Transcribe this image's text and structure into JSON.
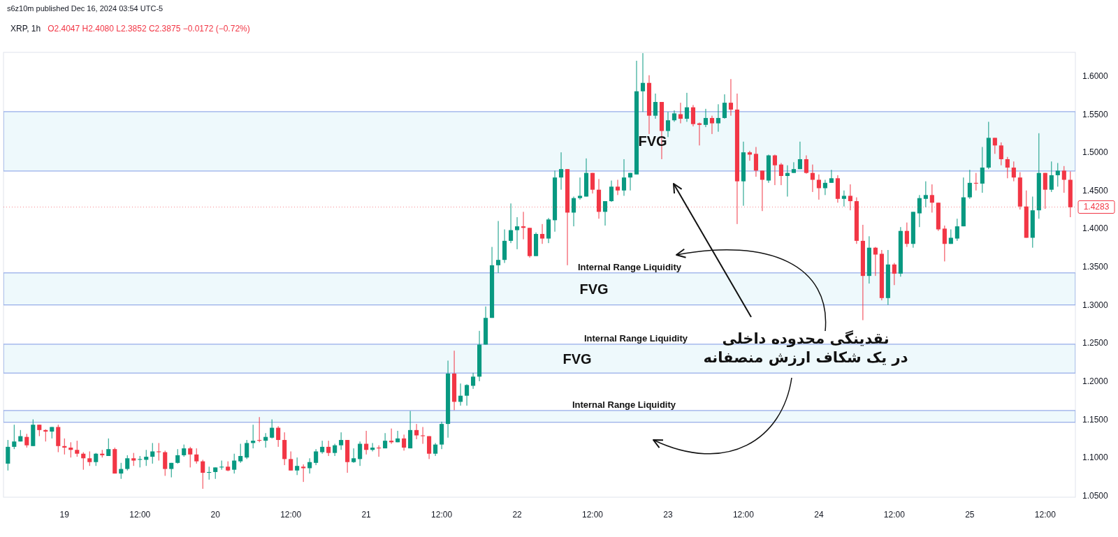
{
  "chart_data": {
    "type": "candlestick",
    "title": "XRP, 1h",
    "subtitle": "O2.4047 H2.4080 L2.3852 C2.3875 −0.0172 (−0.72%)",
    "annotations": [
      "s6z10m published Dec 16, 2024 03:54 UTC-5",
      "Internal Range Liquidity",
      "Internal Range Liquidity",
      "Internal Range Liquidity",
      "نقدینگی محدوده داخلی\nدر یک شکاف ارزش منصفانه"
    ],
    "categories": [
      null,
      null,
      null,
      null,
      null,
      null,
      null,
      null,
      null,
      "19",
      null,
      null,
      null,
      null,
      null,
      null,
      null,
      null,
      null,
      null,
      null,
      "12:00",
      null,
      null,
      null,
      null,
      null,
      null,
      null,
      null,
      null,
      null,
      null,
      "20",
      null,
      null,
      null,
      null,
      null,
      null,
      null,
      null,
      null,
      null,
      null,
      "12:00",
      null,
      null,
      null,
      null,
      null,
      null,
      null,
      null,
      null,
      null,
      null,
      "21",
      null,
      null,
      null,
      null,
      null,
      null,
      null,
      null,
      null,
      null,
      null,
      "12:00",
      null,
      null,
      null,
      null,
      null,
      null,
      null,
      null,
      null,
      null,
      null,
      "22",
      null,
      null,
      null,
      null,
      null,
      null,
      null,
      null,
      null,
      null,
      null,
      "12:00",
      null,
      null,
      null,
      null,
      null,
      null,
      null,
      null,
      null,
      null,
      null,
      "23",
      null,
      null,
      null,
      null,
      null,
      null,
      null,
      null,
      null,
      null,
      null,
      "12:00",
      null,
      null,
      null,
      null,
      null,
      null,
      null,
      null,
      null,
      null,
      null,
      "24",
      null,
      null,
      null,
      null,
      null,
      null,
      null,
      null,
      null,
      null,
      null,
      "12:00",
      null,
      null,
      null,
      null,
      null,
      null,
      null,
      null,
      null,
      null,
      null,
      "25",
      null,
      null,
      null,
      null,
      null,
      null,
      null,
      null,
      null,
      null,
      null,
      "12:00",
      null,
      null,
      null,
      null
    ],
    "ohlc": [
      [
        1.092,
        1.123,
        1.083,
        1.114
      ],
      [
        1.114,
        1.143,
        1.111,
        1.121
      ],
      [
        1.121,
        1.136,
        1.121,
        1.128
      ],
      [
        1.127,
        1.131,
        1.113,
        1.116
      ],
      [
        1.115,
        1.15,
        1.115,
        1.143
      ],
      [
        1.143,
        1.143,
        1.128,
        1.136
      ],
      [
        1.136,
        1.137,
        1.121,
        1.134
      ],
      [
        1.134,
        1.14,
        1.125,
        1.14
      ],
      [
        1.14,
        1.143,
        1.107,
        1.115
      ],
      [
        1.115,
        1.125,
        1.104,
        1.113
      ],
      [
        1.113,
        1.12,
        1.1,
        1.11
      ],
      [
        1.11,
        1.122,
        1.101,
        1.105
      ],
      [
        1.105,
        1.107,
        1.084,
        1.099
      ],
      [
        1.099,
        1.108,
        1.089,
        1.094
      ],
      [
        1.094,
        1.106,
        1.089,
        1.105
      ],
      [
        1.105,
        1.11,
        1.1,
        1.103
      ],
      [
        1.102,
        1.125,
        1.102,
        1.111
      ],
      [
        1.111,
        1.113,
        1.079,
        1.079
      ],
      [
        1.079,
        1.093,
        1.072,
        1.085
      ],
      [
        1.085,
        1.103,
        1.083,
        1.099
      ],
      [
        1.099,
        1.106,
        1.089,
        1.096
      ],
      [
        1.097,
        1.102,
        1.087,
        1.098
      ],
      [
        1.097,
        1.11,
        1.089,
        1.101
      ],
      [
        1.101,
        1.119,
        1.092,
        1.108
      ],
      [
        1.108,
        1.119,
        1.096,
        1.107
      ],
      [
        1.107,
        1.109,
        1.076,
        1.085
      ],
      [
        1.085,
        1.093,
        1.074,
        1.093
      ],
      [
        1.093,
        1.111,
        1.092,
        1.103
      ],
      [
        1.103,
        1.117,
        1.101,
        1.112
      ],
      [
        1.112,
        1.114,
        1.087,
        1.104
      ],
      [
        1.104,
        1.112,
        1.092,
        1.095
      ],
      [
        1.095,
        1.097,
        1.059,
        1.08
      ],
      [
        1.08,
        1.088,
        1.071,
        1.081
      ],
      [
        1.081,
        1.087,
        1.072,
        1.087
      ],
      [
        1.087,
        1.096,
        1.084,
        1.088
      ],
      [
        1.088,
        1.095,
        1.082,
        1.083
      ],
      [
        1.084,
        1.105,
        1.079,
        1.096
      ],
      [
        1.095,
        1.118,
        1.093,
        1.102
      ],
      [
        1.1,
        1.123,
        1.098,
        1.119
      ],
      [
        1.119,
        1.143,
        1.112,
        1.122
      ],
      [
        1.123,
        1.153,
        1.12,
        1.122
      ],
      [
        1.122,
        1.132,
        1.113,
        1.127
      ],
      [
        1.126,
        1.15,
        1.125,
        1.139
      ],
      [
        1.139,
        1.141,
        1.114,
        1.123
      ],
      [
        1.123,
        1.133,
        1.09,
        1.098
      ],
      [
        1.098,
        1.108,
        1.083,
        1.083
      ],
      [
        1.083,
        1.1,
        1.077,
        1.089
      ],
      [
        1.088,
        1.091,
        1.068,
        1.086
      ],
      [
        1.086,
        1.099,
        1.079,
        1.094
      ],
      [
        1.093,
        1.111,
        1.09,
        1.108
      ],
      [
        1.107,
        1.122,
        1.105,
        1.114
      ],
      [
        1.114,
        1.122,
        1.102,
        1.106
      ],
      [
        1.106,
        1.118,
        1.102,
        1.116
      ],
      [
        1.116,
        1.133,
        1.11,
        1.123
      ],
      [
        1.123,
        1.123,
        1.08,
        1.094
      ],
      [
        1.094,
        1.112,
        1.093,
        1.099
      ],
      [
        1.098,
        1.121,
        1.089,
        1.118
      ],
      [
        1.118,
        1.135,
        1.104,
        1.11
      ],
      [
        1.11,
        1.119,
        1.108,
        1.113
      ],
      [
        1.113,
        1.116,
        1.101,
        1.112
      ],
      [
        1.112,
        1.132,
        1.112,
        1.122
      ],
      [
        1.122,
        1.138,
        1.118,
        1.12
      ],
      [
        1.12,
        1.135,
        1.12,
        1.125
      ],
      [
        1.125,
        1.13,
        1.109,
        1.113
      ],
      [
        1.112,
        1.161,
        1.112,
        1.136
      ],
      [
        1.136,
        1.144,
        1.124,
        1.129
      ],
      [
        1.129,
        1.14,
        1.118,
        1.128
      ],
      [
        1.128,
        1.128,
        1.098,
        1.105
      ],
      [
        1.105,
        1.119,
        1.102,
        1.117
      ],
      [
        1.117,
        1.147,
        1.111,
        1.144
      ],
      [
        1.144,
        1.227,
        1.126,
        1.21
      ],
      [
        1.21,
        1.24,
        1.162,
        1.173
      ],
      [
        1.173,
        1.197,
        1.168,
        1.181
      ],
      [
        1.181,
        1.196,
        1.168,
        1.195
      ],
      [
        1.194,
        1.211,
        1.19,
        1.206
      ],
      [
        1.206,
        1.266,
        1.2,
        1.248
      ],
      [
        1.248,
        1.298,
        1.248,
        1.283
      ],
      [
        1.283,
        1.376,
        1.283,
        1.352
      ],
      [
        1.352,
        1.41,
        1.342,
        1.359
      ],
      [
        1.359,
        1.399,
        1.355,
        1.384
      ],
      [
        1.384,
        1.433,
        1.381,
        1.398
      ],
      [
        1.398,
        1.415,
        1.373,
        1.403
      ],
      [
        1.403,
        1.422,
        1.386,
        1.401
      ],
      [
        1.401,
        1.401,
        1.362,
        1.364
      ],
      [
        1.364,
        1.395,
        1.364,
        1.393
      ],
      [
        1.393,
        1.406,
        1.38,
        1.387
      ],
      [
        1.387,
        1.414,
        1.381,
        1.412
      ],
      [
        1.411,
        1.476,
        1.396,
        1.467
      ],
      [
        1.467,
        1.5,
        1.451,
        1.478
      ],
      [
        1.478,
        1.478,
        1.352,
        1.421
      ],
      [
        1.421,
        1.442,
        1.403,
        1.44
      ],
      [
        1.44,
        1.467,
        1.438,
        1.443
      ],
      [
        1.442,
        1.492,
        1.442,
        1.473
      ],
      [
        1.473,
        1.473,
        1.446,
        1.451
      ],
      [
        1.451,
        1.465,
        1.413,
        1.422
      ],
      [
        1.422,
        1.436,
        1.404,
        1.436
      ],
      [
        1.436,
        1.463,
        1.435,
        1.455
      ],
      [
        1.455,
        1.464,
        1.444,
        1.45
      ],
      [
        1.45,
        1.491,
        1.443,
        1.467
      ],
      [
        1.467,
        1.473,
        1.45,
        1.473
      ],
      [
        1.471,
        1.62,
        1.471,
        1.58
      ],
      [
        1.58,
        1.63,
        1.553,
        1.591
      ],
      [
        1.591,
        1.601,
        1.524,
        1.548
      ],
      [
        1.548,
        1.577,
        1.544,
        1.566
      ],
      [
        1.566,
        1.566,
        1.491,
        1.528
      ],
      [
        1.528,
        1.553,
        1.52,
        1.542
      ],
      [
        1.542,
        1.555,
        1.54,
        1.551
      ],
      [
        1.55,
        1.565,
        1.538,
        1.544
      ],
      [
        1.544,
        1.578,
        1.54,
        1.559
      ],
      [
        1.559,
        1.562,
        1.534,
        1.537
      ],
      [
        1.538,
        1.539,
        1.509,
        1.536
      ],
      [
        1.536,
        1.557,
        1.533,
        1.545
      ],
      [
        1.545,
        1.548,
        1.524,
        1.538
      ],
      [
        1.538,
        1.563,
        1.527,
        1.545
      ],
      [
        1.545,
        1.576,
        1.544,
        1.565
      ],
      [
        1.565,
        1.596,
        1.548,
        1.556
      ],
      [
        1.556,
        1.577,
        1.406,
        1.462
      ],
      [
        1.462,
        1.514,
        1.43,
        1.5
      ],
      [
        1.5,
        1.502,
        1.489,
        1.497
      ],
      [
        1.498,
        1.507,
        1.468,
        1.476
      ],
      [
        1.476,
        1.476,
        1.423,
        1.464
      ],
      [
        1.463,
        1.497,
        1.46,
        1.496
      ],
      [
        1.496,
        1.497,
        1.457,
        1.483
      ],
      [
        1.484,
        1.486,
        1.457,
        1.469
      ],
      [
        1.469,
        1.483,
        1.442,
        1.473
      ],
      [
        1.473,
        1.487,
        1.473,
        1.478
      ],
      [
        1.478,
        1.514,
        1.478,
        1.491
      ],
      [
        1.491,
        1.496,
        1.472,
        1.473
      ],
      [
        1.473,
        1.484,
        1.448,
        1.464
      ],
      [
        1.464,
        1.471,
        1.438,
        1.453
      ],
      [
        1.453,
        1.464,
        1.444,
        1.46
      ],
      [
        1.46,
        1.477,
        1.46,
        1.466
      ],
      [
        1.466,
        1.47,
        1.434,
        1.439
      ],
      [
        1.439,
        1.45,
        1.429,
        1.443
      ],
      [
        1.443,
        1.458,
        1.424,
        1.436
      ],
      [
        1.436,
        1.441,
        1.38,
        1.384
      ],
      [
        1.384,
        1.405,
        1.28,
        1.338
      ],
      [
        1.338,
        1.39,
        1.328,
        1.375
      ],
      [
        1.375,
        1.376,
        1.338,
        1.366
      ],
      [
        1.367,
        1.372,
        1.306,
        1.309
      ],
      [
        1.309,
        1.372,
        1.3,
        1.353
      ],
      [
        1.353,
        1.355,
        1.326,
        1.341
      ],
      [
        1.341,
        1.402,
        1.337,
        1.397
      ],
      [
        1.397,
        1.408,
        1.376,
        1.38
      ],
      [
        1.38,
        1.422,
        1.375,
        1.422
      ],
      [
        1.42,
        1.444,
        1.402,
        1.44
      ],
      [
        1.439,
        1.462,
        1.428,
        1.444
      ],
      [
        1.444,
        1.458,
        1.421,
        1.434
      ],
      [
        1.434,
        1.434,
        1.397,
        1.399
      ],
      [
        1.4,
        1.404,
        1.357,
        1.38
      ],
      [
        1.38,
        1.399,
        1.38,
        1.388
      ],
      [
        1.387,
        1.413,
        1.384,
        1.403
      ],
      [
        1.403,
        1.467,
        1.403,
        1.441
      ],
      [
        1.441,
        1.477,
        1.439,
        1.46
      ],
      [
        1.46,
        1.473,
        1.45,
        1.459
      ],
      [
        1.459,
        1.507,
        1.447,
        1.48
      ],
      [
        1.48,
        1.54,
        1.478,
        1.519
      ],
      [
        1.519,
        1.519,
        1.498,
        1.509
      ],
      [
        1.509,
        1.513,
        1.483,
        1.491
      ],
      [
        1.491,
        1.494,
        1.466,
        1.48
      ],
      [
        1.48,
        1.488,
        1.462,
        1.467
      ],
      [
        1.467,
        1.474,
        1.425,
        1.429
      ],
      [
        1.429,
        1.45,
        1.388,
        1.388
      ],
      [
        1.388,
        1.442,
        1.375,
        1.424
      ],
      [
        1.424,
        1.525,
        1.413,
        1.473
      ],
      [
        1.473,
        1.473,
        1.426,
        1.451
      ],
      [
        1.451,
        1.488,
        1.448,
        1.47
      ],
      [
        1.47,
        1.486,
        1.455,
        1.476
      ],
      [
        1.476,
        1.482,
        1.447,
        1.464
      ],
      [
        1.464,
        1.475,
        1.415,
        1.428
      ]
    ],
    "ylim": [
      1.048,
      1.631
    ],
    "yticks": [
      {
        "value": 1.05,
        "label": "1.0500"
      },
      {
        "value": 1.1,
        "label": "1.1000"
      },
      {
        "value": 1.15,
        "label": "1.1500"
      },
      {
        "value": 1.2,
        "label": "1.2000"
      },
      {
        "value": 1.25,
        "label": "1.2500"
      },
      {
        "value": 1.3,
        "label": "1.3000"
      },
      {
        "value": 1.35,
        "label": "1.3500"
      },
      {
        "value": 1.4,
        "label": "1.4000"
      },
      {
        "value": 1.45,
        "label": "1.4500"
      },
      {
        "value": 1.5,
        "label": "1.5000"
      },
      {
        "value": 1.55,
        "label": "1.5500"
      },
      {
        "value": 1.6,
        "label": "1.6000"
      }
    ],
    "bands": [
      {
        "axis": "y",
        "from": 1.4755,
        "to": 1.5533,
        "color": "#e0f4fa",
        "label": "FVG"
      },
      {
        "axis": "y",
        "from": 1.3,
        "to": 1.342,
        "color": "#e0f4fa",
        "label": "FVG"
      },
      {
        "axis": "y",
        "from": 1.2107,
        "to": 1.2485,
        "color": "#e0f4fa",
        "label": "FVG"
      },
      {
        "axis": "y",
        "from": 1.1462,
        "to": 1.1616,
        "color": "#e0f4fa"
      }
    ],
    "ref_lines": [
      {
        "axis": "y",
        "value": 1.4283,
        "label": "1.4283",
        "color": "#f23645",
        "line_style": "dotted"
      }
    ]
  }
}
